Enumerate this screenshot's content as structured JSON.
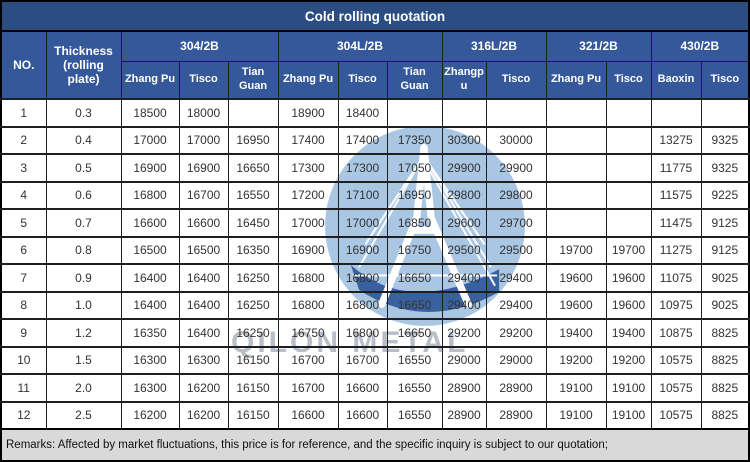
{
  "title": "Cold rolling quotation",
  "watermark": {
    "text": "QILON METAL",
    "logo_icon": "bridge-circle-logo",
    "logo_color": "#a9c6e3",
    "text_color": "#b6bcc6"
  },
  "colors": {
    "title_bar": "#2b4d82",
    "header_blue": "#35589a",
    "remarks_bg": "#d9d9d9",
    "data_text": "#333333"
  },
  "columns": {
    "no_label": "NO.",
    "thickness_label": "Thickness (rolling plate)",
    "groups": [
      {
        "label": "304/2B",
        "suppliers": [
          "Zhang Pu",
          "Tisco",
          "Tian Guan"
        ]
      },
      {
        "label": "304L/2B",
        "suppliers": [
          "Zhang Pu",
          "Tisco",
          "Tian Guan"
        ]
      },
      {
        "label": "316L/2B",
        "suppliers": [
          "Zhangpu",
          "Tisco"
        ]
      },
      {
        "label": "321/2B",
        "suppliers": [
          "Zhang Pu",
          "Tisco"
        ]
      },
      {
        "label": "430/2B",
        "suppliers": [
          "Baoxin",
          "Tisco"
        ]
      }
    ]
  },
  "rows": [
    {
      "no": "1",
      "thickness": "0.3",
      "values": [
        "18500",
        "18000",
        "",
        "18900",
        "18400",
        "",
        "",
        "",
        "",
        "",
        "",
        ""
      ]
    },
    {
      "no": "2",
      "thickness": "0.4",
      "values": [
        "17000",
        "17000",
        "16950",
        "17400",
        "17400",
        "17350",
        "30300",
        "30000",
        "",
        "",
        "13275",
        "9325"
      ]
    },
    {
      "no": "3",
      "thickness": "0.5",
      "values": [
        "16900",
        "16900",
        "16650",
        "17300",
        "17300",
        "17050",
        "29900",
        "29900",
        "",
        "",
        "11775",
        "9325"
      ]
    },
    {
      "no": "4",
      "thickness": "0.6",
      "values": [
        "16800",
        "16700",
        "16550",
        "17200",
        "17100",
        "16950",
        "29800",
        "29800",
        "",
        "",
        "11575",
        "9225"
      ]
    },
    {
      "no": "5",
      "thickness": "0.7",
      "values": [
        "16600",
        "16600",
        "16450",
        "17000",
        "17000",
        "16850",
        "29600",
        "29700",
        "",
        "",
        "11475",
        "9125"
      ]
    },
    {
      "no": "6",
      "thickness": "0.8",
      "values": [
        "16500",
        "16500",
        "16350",
        "16900",
        "16900",
        "16750",
        "29500",
        "29500",
        "19700",
        "19700",
        "11275",
        "9125"
      ]
    },
    {
      "no": "7",
      "thickness": "0.9",
      "values": [
        "16400",
        "16400",
        "16250",
        "16800",
        "16800",
        "16650",
        "29400",
        "29400",
        "19600",
        "19600",
        "11075",
        "9025"
      ]
    },
    {
      "no": "8",
      "thickness": "1.0",
      "values": [
        "16400",
        "16400",
        "16250",
        "16800",
        "16800",
        "16650",
        "29400",
        "29400",
        "19600",
        "19600",
        "10975",
        "9025"
      ]
    },
    {
      "no": "9",
      "thickness": "1.2",
      "values": [
        "16350",
        "16400",
        "16250",
        "16750",
        "16800",
        "16650",
        "29200",
        "29200",
        "19400",
        "19400",
        "10875",
        "8825"
      ]
    },
    {
      "no": "10",
      "thickness": "1.5",
      "values": [
        "16300",
        "16300",
        "16150",
        "16700",
        "16700",
        "16550",
        "29000",
        "29000",
        "19200",
        "19200",
        "10575",
        "8825"
      ]
    },
    {
      "no": "11",
      "thickness": "2.0",
      "values": [
        "16300",
        "16200",
        "16150",
        "16700",
        "16600",
        "16550",
        "28900",
        "28900",
        "19100",
        "19100",
        "10575",
        "8825"
      ]
    },
    {
      "no": "12",
      "thickness": "2.5",
      "values": [
        "16200",
        "16200",
        "16150",
        "16600",
        "16600",
        "16550",
        "28900",
        "28900",
        "19100",
        "19100",
        "10575",
        "8825"
      ]
    }
  ],
  "remarks": "Remarks: Affected by market fluctuations, this price is for reference, and the specific inquiry is subject to our quotation;"
}
